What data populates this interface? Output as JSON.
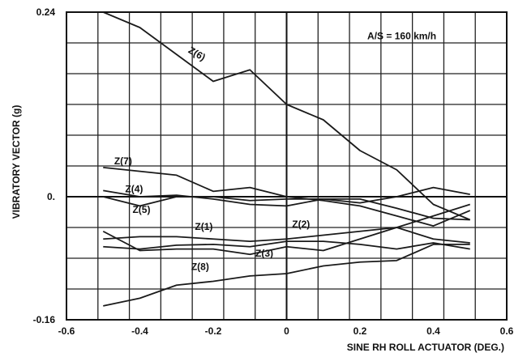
{
  "chart_data": {
    "type": "line",
    "title": "",
    "xlabel": "SINE RH ROLL ACTUATOR (DEG.)",
    "ylabel": "VIBRATORY VECTOR (g)",
    "annotation": "A/S = 160 km/h",
    "xlim": [
      -0.6,
      0.6
    ],
    "ylim": [
      -0.16,
      0.24
    ],
    "x_ticks": [
      -0.6,
      -0.4,
      -0.2,
      0,
      0.2,
      0.4,
      0.6
    ],
    "x_tick_labels": [
      "-0.6",
      "-0.4",
      "-0.2",
      "0",
      "0.2",
      "0.4",
      "0.6"
    ],
    "y_tick_labels": [
      {
        "value": 0.24,
        "label": "0.24"
      },
      {
        "value": 0,
        "label": "0."
      },
      {
        "value": -0.16,
        "label": "-0.16"
      }
    ],
    "grid": true,
    "x": [
      -0.5,
      -0.4,
      -0.3,
      -0.2,
      -0.1,
      0,
      0.1,
      0.2,
      0.3,
      0.4,
      0.5
    ],
    "series": [
      {
        "name": "Z(1)",
        "values": [
          -0.055,
          -0.052,
          -0.052,
          -0.055,
          -0.058,
          -0.055,
          -0.05,
          -0.045,
          -0.04,
          -0.025,
          -0.01
        ]
      },
      {
        "name": "Z(2)",
        "values": [
          -0.065,
          -0.068,
          -0.063,
          -0.062,
          -0.065,
          -0.058,
          -0.058,
          -0.062,
          -0.068,
          -0.06,
          -0.068
        ]
      },
      {
        "name": "Z(3)",
        "values": [
          -0.045,
          -0.07,
          -0.068,
          -0.068,
          -0.075,
          -0.065,
          -0.07,
          -0.055,
          -0.04,
          -0.055,
          -0.06
        ]
      },
      {
        "name": "Z(4)",
        "values": [
          0.008,
          0.0,
          0.002,
          -0.003,
          -0.01,
          -0.012,
          -0.003,
          -0.008,
          0.0,
          0.012,
          0.003
        ]
      },
      {
        "name": "Z(5)",
        "values": [
          0.0,
          -0.012,
          0.0,
          0.0,
          -0.005,
          -0.003,
          -0.003,
          -0.003,
          -0.015,
          -0.028,
          -0.03
        ]
      },
      {
        "name": "Z(6)",
        "values": [
          0.24,
          0.22,
          0.185,
          0.15,
          0.165,
          0.12,
          0.1,
          0.06,
          0.035,
          -0.01,
          -0.03
        ]
      },
      {
        "name": "Z(7)",
        "values": [
          0.038,
          0.033,
          0.028,
          0.007,
          0.012,
          0.0,
          -0.005,
          -0.012,
          -0.025,
          -0.038,
          -0.018
        ]
      },
      {
        "name": "Z(8)",
        "values": [
          -0.142,
          -0.132,
          -0.115,
          -0.11,
          -0.103,
          -0.1,
          -0.09,
          -0.085,
          -0.083,
          -0.062,
          -0.062
        ]
      }
    ]
  }
}
